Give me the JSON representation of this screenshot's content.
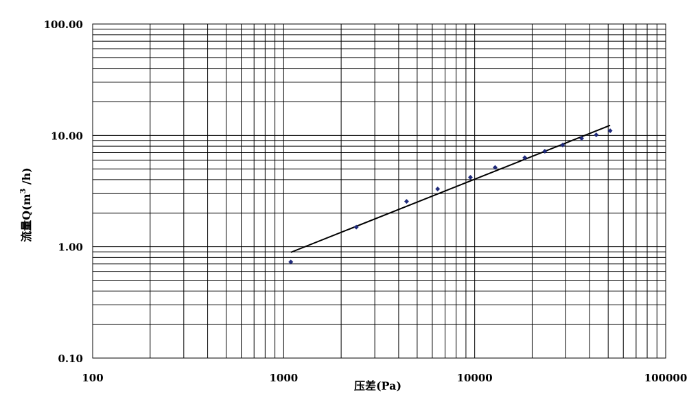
{
  "chart_data": {
    "type": "scatter",
    "xlabel": "压差(Pa)",
    "ylabel_parts": [
      "流量Q(m",
      "3",
      " /h)"
    ],
    "xscale": "log",
    "yscale": "log",
    "xlim": [
      100,
      100000
    ],
    "ylim": [
      0.1,
      100
    ],
    "x_tick_labels": [
      "100",
      "1000",
      "10000",
      "100000"
    ],
    "y_tick_labels": [
      "0.10",
      "1.00",
      "10.00",
      "100.00"
    ],
    "grid": true,
    "legend": "none",
    "series": [
      {
        "marker": "diamond",
        "color": "#1f2a7a",
        "points": [
          [
            1090,
            0.73
          ],
          [
            2400,
            1.5
          ],
          [
            4400,
            2.55
          ],
          [
            6400,
            3.3
          ],
          [
            9500,
            4.2
          ],
          [
            12800,
            5.15
          ],
          [
            18300,
            6.3
          ],
          [
            23300,
            7.2
          ],
          [
            28900,
            8.2
          ],
          [
            36300,
            9.4
          ],
          [
            43300,
            10.1
          ],
          [
            51200,
            11.0
          ]
        ]
      }
    ],
    "trendline": {
      "type": "power",
      "color": "#000000",
      "points": [
        [
          1090,
          0.89
        ],
        [
          51200,
          12.3
        ]
      ]
    }
  }
}
